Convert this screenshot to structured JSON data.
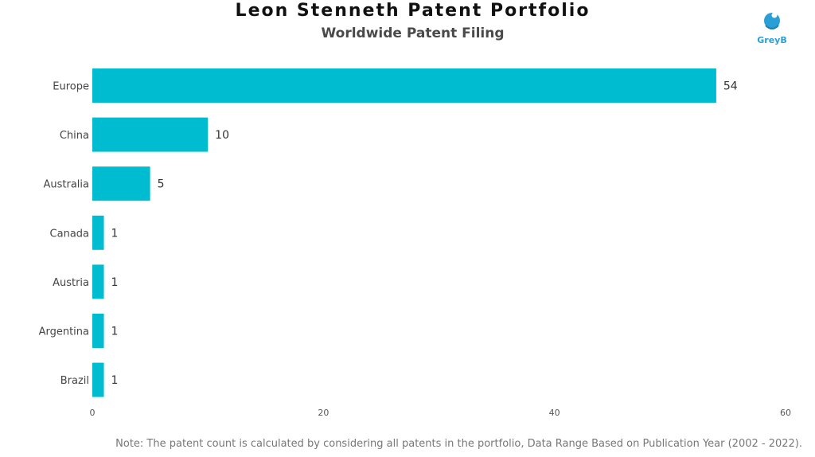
{
  "header": {
    "title": "Leon Stenneth Patent Portfolio",
    "subtitle": "Worldwide Patent Filing"
  },
  "logo": {
    "text": "GreyB",
    "icon": "greyb-logo-icon",
    "color": "#2a9fd6"
  },
  "note": "Note: The patent count is calculated by considering all patents in the portfolio, Data Range Based on Publication Year (2002 - 2022).",
  "chart_data": {
    "type": "bar",
    "orientation": "horizontal",
    "title": "Leon Stenneth Patent Portfolio",
    "subtitle": "Worldwide Patent Filing",
    "categories": [
      "Europe",
      "China",
      "Australia",
      "Canada",
      "Austria",
      "Argentina",
      "Brazil"
    ],
    "values": [
      54,
      10,
      5,
      1,
      1,
      1,
      1
    ],
    "xlim": [
      0,
      60
    ],
    "xticks": [
      0,
      20,
      40,
      60
    ],
    "bar_color": "#00bcd0",
    "grid": false,
    "data_labels": true
  }
}
